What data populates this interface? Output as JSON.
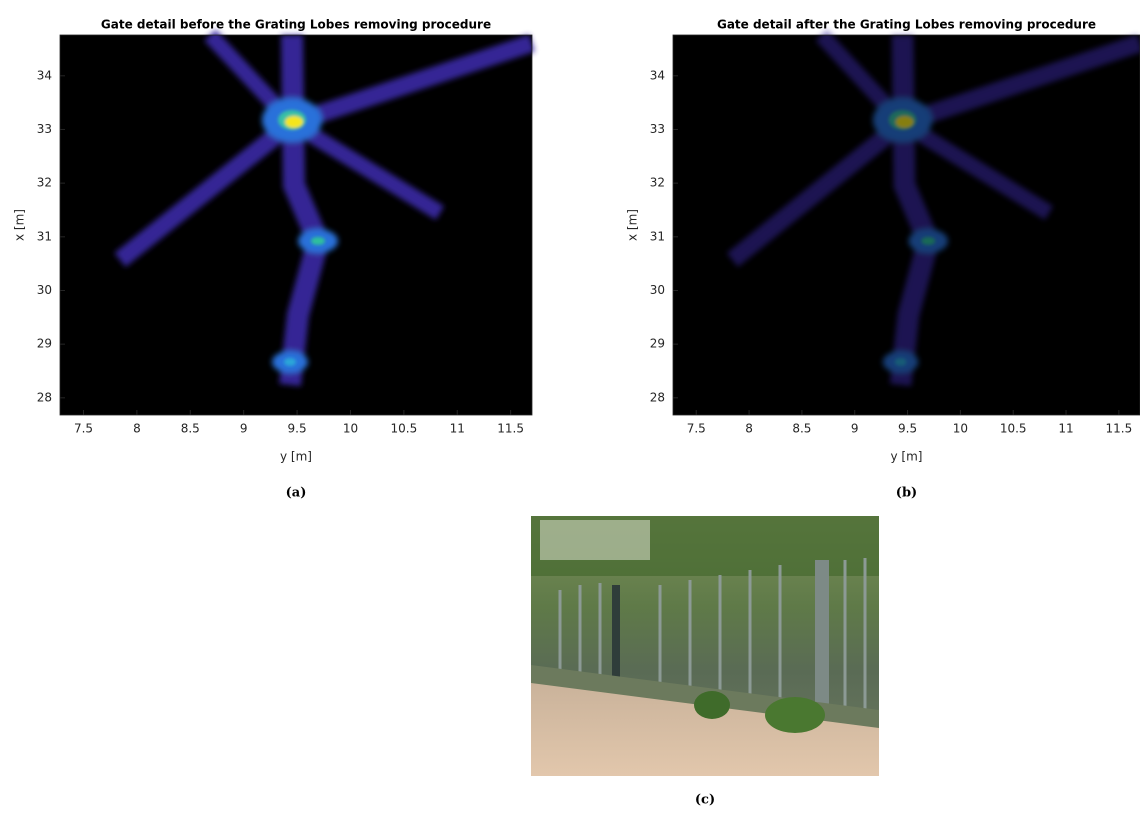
{
  "chart_data": [
    {
      "type": "heatmap",
      "title": "Gate detail before the Grating Lobes removing procedure",
      "xlabel": "y [m]",
      "ylabel": "x [m]",
      "xlim": [
        7.28,
        11.7
      ],
      "ylim": [
        27.68,
        34.76
      ],
      "xticks": [
        7.5,
        8,
        8.5,
        9,
        9.5,
        10,
        10.5,
        11,
        11.5
      ],
      "yticks": [
        28,
        29,
        30,
        31,
        32,
        33,
        34
      ],
      "caption": "(a)"
    },
    {
      "type": "heatmap",
      "title": "Gate detail after the Grating Lobes removing procedure",
      "xlabel": "y [m]",
      "ylabel": "x [m]",
      "xlim": [
        7.28,
        11.7
      ],
      "ylim": [
        27.68,
        34.76
      ],
      "xticks": [
        7.5,
        8,
        8.5,
        9,
        9.5,
        10,
        10.5,
        11,
        11.5
      ],
      "yticks": [
        28,
        29,
        30,
        31,
        32,
        33,
        34
      ],
      "caption": "(b)"
    }
  ],
  "photo": {
    "caption": "(c)"
  }
}
